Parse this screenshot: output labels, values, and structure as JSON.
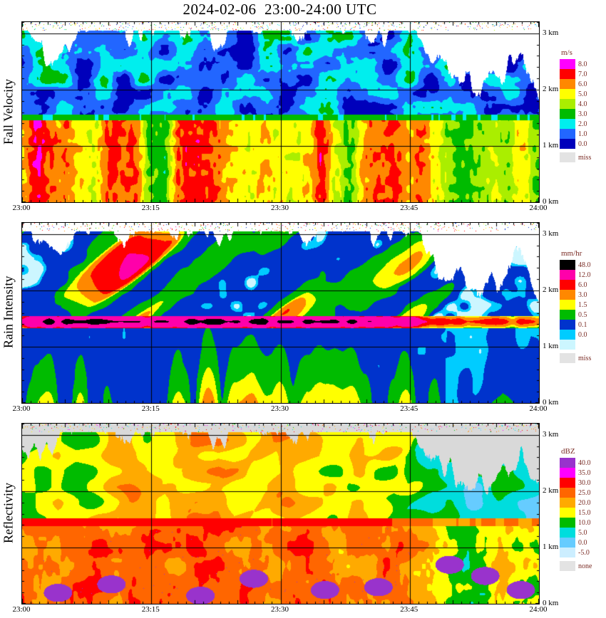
{
  "title": "2024-02-06  23:00-24:00 UTC",
  "time_axis": {
    "date": "2024-02-06",
    "start_utc": "23:00",
    "end_utc": "24:00",
    "series_step_min": 2
  },
  "chart_data": [
    {
      "type": "heatmap",
      "name": "fall-velocity",
      "ylabel": "Fall Velocity",
      "unit": "m/s",
      "x_ticks": [
        "23:00",
        "23:15",
        "23:30",
        "23:45",
        "24:00"
      ],
      "y_ticks_km": [
        0,
        1,
        2,
        3
      ],
      "y_max_km": 3.2,
      "no_echo_color": "#ffffff",
      "legend": [
        {
          "label": "8.0",
          "color": "#ff00ff"
        },
        {
          "label": "7.0",
          "color": "#ff0000"
        },
        {
          "label": "6.0",
          "color": "#ff8800"
        },
        {
          "label": "5.0",
          "color": "#ffff00"
        },
        {
          "label": "4.0",
          "color": "#aaee00"
        },
        {
          "label": "3.0",
          "color": "#00bb00"
        },
        {
          "label": "2.0",
          "color": "#00eeee"
        },
        {
          "label": "1.0",
          "color": "#2266ff"
        },
        {
          "label": "0.0",
          "color": "#0000bb"
        }
      ],
      "missing": {
        "label": "miss",
        "color": "#e3e3e3"
      },
      "scale": [
        [
          0,
          "#0000bb"
        ],
        [
          1,
          "#2266ff"
        ],
        [
          2,
          "#00eeee"
        ],
        [
          3,
          "#00bb00"
        ],
        [
          4,
          "#aaee00"
        ],
        [
          5,
          "#ffff00"
        ],
        [
          6,
          "#ff8800"
        ],
        [
          7,
          "#ff0000"
        ],
        [
          8,
          "#ff00ff"
        ]
      ],
      "series": {
        "echo_top_km": [
          3.22,
          2.72,
          2.52,
          3.08,
          3.22,
          3.22,
          2.92,
          3.22,
          3.22,
          3.1,
          3.22,
          2.82,
          3.22,
          3.22,
          3.22,
          3.1,
          3.0,
          3.22,
          3.22,
          3.22,
          2.9,
          3.22,
          3.1,
          2.52,
          2.32,
          2.17,
          2.07,
          2.22,
          2.67,
          1.97
        ],
        "upper_velocity_ms": [
          1.7,
          1.9,
          2.1,
          1.8,
          1.6,
          1.7,
          2.0,
          1.8,
          1.7,
          1.9,
          1.8,
          2.0,
          1.7,
          1.6,
          1.8,
          1.9,
          1.7,
          1.8,
          2.0,
          1.7,
          1.6,
          1.8,
          1.7,
          1.9,
          1.6,
          1.5,
          1.6,
          1.7,
          1.5,
          1.4
        ],
        "melting_layer_km": 1.48,
        "lower_velocity_ms": [
          6.0,
          6.5,
          5.2,
          5.8,
          6.2,
          7.0,
          6.6,
          5.4,
          4.8,
          6.0,
          6.6,
          7.0,
          6.2,
          5.6,
          5.2,
          6.4,
          6.8,
          6.0,
          5.2,
          5.6,
          6.2,
          6.4,
          5.6,
          5.0,
          4.6,
          4.2,
          4.6,
          5.0,
          4.6,
          4.2
        ]
      }
    },
    {
      "type": "heatmap",
      "name": "rain-intensity",
      "ylabel": "Rain Intensity",
      "unit": "mm/hr",
      "x_ticks": [
        "23:00",
        "23:15",
        "23:30",
        "23:45",
        "24:00"
      ],
      "y_ticks_km": [
        0,
        1,
        2,
        3
      ],
      "y_max_km": 3.2,
      "no_echo_color": "#ffffff",
      "legend": [
        {
          "label": "48.0",
          "color": "#000000"
        },
        {
          "label": "12.0",
          "color": "#ff00aa"
        },
        {
          "label": "6.0",
          "color": "#ff0000"
        },
        {
          "label": "3.0",
          "color": "#ff8800"
        },
        {
          "label": "1.5",
          "color": "#ffff00"
        },
        {
          "label": "0.5",
          "color": "#00bb00"
        },
        {
          "label": "0.1",
          "color": "#0033cc"
        },
        {
          "label": "0.0",
          "color": "#00ccff"
        },
        {
          "label": "",
          "color": "#ccf6ff"
        }
      ],
      "missing": {
        "label": "miss",
        "color": "#e3e3e3"
      },
      "scale": [
        [
          0,
          "#ccf6ff"
        ],
        [
          0.05,
          "#00ccff"
        ],
        [
          0.1,
          "#0033cc"
        ],
        [
          0.5,
          "#00bb00"
        ],
        [
          1.5,
          "#ffff00"
        ],
        [
          3,
          "#ff8800"
        ],
        [
          6,
          "#ff0000"
        ],
        [
          12,
          "#ff00aa"
        ],
        [
          48,
          "#000000"
        ]
      ],
      "series": {
        "echo_top_km": [
          3.22,
          2.72,
          2.52,
          3.08,
          3.22,
          3.22,
          2.92,
          3.22,
          3.22,
          3.1,
          3.22,
          2.82,
          3.22,
          3.22,
          3.22,
          3.1,
          3.0,
          3.22,
          3.22,
          3.22,
          2.9,
          3.22,
          3.1,
          2.52,
          2.32,
          2.17,
          2.07,
          2.22,
          2.67,
          1.97
        ],
        "upper_base_mmhr": [
          0.4,
          0.5,
          0.6,
          0.8,
          1.0,
          1.2,
          1.5,
          1.2,
          1.0,
          1.4,
          1.2,
          1.5,
          1.3,
          1.0,
          1.2,
          1.4,
          1.2,
          1.0,
          0.8,
          1.0,
          0.8,
          0.6,
          0.5,
          0.3,
          0.2,
          0.15,
          0.12,
          0.1,
          0.1,
          0.08
        ],
        "streak_max_mmhr": [
          2,
          3,
          4,
          6,
          10,
          12,
          14,
          12,
          10,
          14,
          12,
          16,
          12,
          10,
          12,
          14,
          12,
          10,
          8,
          8,
          6,
          4,
          3,
          1,
          0.5,
          0.3,
          0.2,
          0.2,
          0.2,
          0.1
        ],
        "bright_band_km": 1.45,
        "bright_band_mmhr": [
          30,
          48,
          52,
          40,
          52,
          50,
          48,
          36,
          52,
          50,
          48,
          52,
          40,
          52,
          50,
          48,
          50,
          40,
          50,
          48,
          40,
          30,
          20,
          14,
          8,
          6,
          6,
          8,
          6,
          5
        ],
        "lower_surface_mmhr": [
          2.5,
          4,
          1.5,
          3,
          5,
          2.5,
          4,
          5,
          3,
          2,
          4,
          5,
          3,
          4,
          2.5,
          3.5,
          4.5,
          3,
          2,
          2.5,
          3,
          3.5,
          2,
          0.8,
          0.3,
          0.2,
          0.3,
          0.5,
          0.3,
          0.2
        ],
        "lower_background_mmhr": [
          0.15,
          0.15,
          0.15,
          0.15,
          0.15,
          0.15,
          0.15,
          0.15,
          0.15,
          0.15,
          0.15,
          0.15,
          0.15,
          0.15,
          0.15,
          0.15,
          0.15,
          0.15,
          0.15,
          0.15,
          0.15,
          0.15,
          0.15,
          0.12,
          0.08,
          0.07,
          0.06,
          0.07,
          0.06,
          0.06
        ]
      }
    },
    {
      "type": "heatmap",
      "name": "reflectivity",
      "ylabel": "Reflectivity",
      "unit": "dBZ",
      "x_ticks": [
        "23:00",
        "23:15",
        "23:30",
        "23:45",
        "24:00"
      ],
      "y_ticks_km": [
        0,
        1,
        2,
        3
      ],
      "y_max_km": 3.2,
      "no_echo_color": "#d9d9d9",
      "legend": [
        {
          "label": "40.0",
          "color": "#9933cc"
        },
        {
          "label": "35.0",
          "color": "#ff00ff"
        },
        {
          "label": "30.0",
          "color": "#ff0000"
        },
        {
          "label": "25.0",
          "color": "#ff6600"
        },
        {
          "label": "20.0",
          "color": "#ffaa00"
        },
        {
          "label": "15.0",
          "color": "#ffff00"
        },
        {
          "label": "10.0",
          "color": "#00bb00"
        },
        {
          "label": "5.0",
          "color": "#00dddd"
        },
        {
          "label": "0.0",
          "color": "#66ccff"
        },
        {
          "label": "-5.0",
          "color": "#cceeff"
        }
      ],
      "missing": {
        "label": "none",
        "color": "#e3e3e3"
      },
      "scale": [
        [
          -5,
          "#cceeff"
        ],
        [
          0,
          "#66ccff"
        ],
        [
          5,
          "#00dddd"
        ],
        [
          10,
          "#00bb00"
        ],
        [
          15,
          "#ffff00"
        ],
        [
          20,
          "#ffaa00"
        ],
        [
          25,
          "#ff6600"
        ],
        [
          30,
          "#ff0000"
        ],
        [
          35,
          "#ff00ff"
        ],
        [
          40,
          "#9933cc"
        ]
      ],
      "series": {
        "echo_top_km": [
          2.8,
          2.7,
          2.9,
          3.1,
          3.22,
          3.22,
          3.0,
          3.22,
          3.22,
          3.1,
          3.22,
          2.9,
          3.22,
          3.22,
          3.22,
          3.1,
          3.0,
          3.22,
          3.22,
          3.22,
          2.9,
          3.22,
          3.1,
          2.6,
          2.4,
          2.2,
          2.1,
          2.3,
          2.7,
          2.0
        ],
        "upper_dbz": [
          12,
          15,
          18,
          14,
          16,
          20,
          22,
          18,
          16,
          20,
          22,
          24,
          20,
          18,
          20,
          22,
          20,
          18,
          16,
          18,
          16,
          14,
          12,
          8,
          6,
          5,
          6,
          7,
          6,
          5
        ],
        "bright_band_km": 1.45,
        "band_dbz": [
          32,
          33,
          31,
          32,
          33,
          34,
          32,
          31,
          33,
          32,
          33,
          34,
          32,
          33,
          31,
          32,
          33,
          32,
          31,
          32,
          31,
          30,
          28,
          26,
          24,
          24,
          25,
          26,
          25,
          24
        ],
        "lower_dbz": [
          26,
          28,
          24,
          27,
          29,
          26,
          28,
          30,
          27,
          25,
          28,
          30,
          27,
          28,
          25,
          27,
          29,
          27,
          24,
          26,
          27,
          28,
          25,
          22,
          14,
          12,
          14,
          20,
          18,
          16
        ],
        "purple_spots": [
          [
            2,
            0.2
          ],
          [
            5,
            0.35
          ],
          [
            10,
            0.15
          ],
          [
            13,
            0.45
          ],
          [
            17,
            0.25
          ],
          [
            20,
            0.3
          ],
          [
            24,
            0.7
          ],
          [
            26,
            0.5
          ],
          [
            28,
            0.25
          ]
        ]
      }
    }
  ]
}
